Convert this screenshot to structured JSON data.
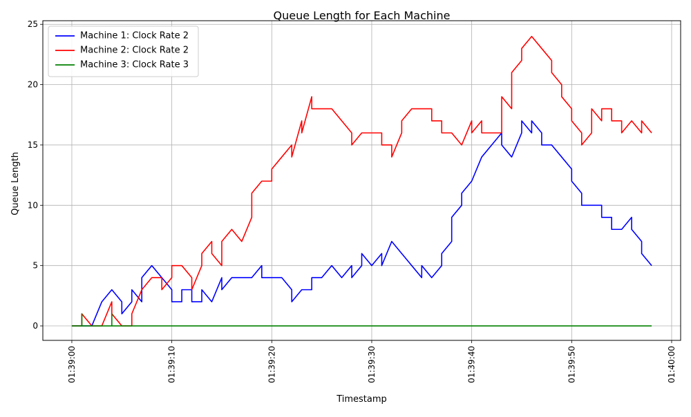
{
  "chart_data": {
    "type": "line",
    "title": "Queue Length for Each Machine",
    "xlabel": "Timestamp",
    "ylabel": "Queue Length",
    "x_ticks": [
      "01:39:00",
      "01:39:10",
      "01:39:20",
      "01:39:30",
      "01:39:40",
      "01:39:50",
      "01:40:00"
    ],
    "x_tick_seconds": [
      0,
      10,
      20,
      30,
      40,
      50,
      60
    ],
    "xlim": [
      -2.9,
      60.9
    ],
    "y_ticks": [
      0,
      5,
      10,
      15,
      20,
      25
    ],
    "ylim": [
      -1.2,
      25.3
    ],
    "grid": true,
    "legend_position": "top-left",
    "x_unit": "seconds after 01:39:00",
    "series": [
      {
        "name": "Machine 1: Clock Rate 2",
        "color": "#0000ff",
        "points": [
          [
            0,
            0
          ],
          [
            1,
            0
          ],
          [
            2,
            0
          ],
          [
            3,
            2
          ],
          [
            4,
            3
          ],
          [
            5,
            2
          ],
          [
            5,
            1
          ],
          [
            6,
            2
          ],
          [
            6,
            3
          ],
          [
            7,
            2
          ],
          [
            7,
            4
          ],
          [
            8,
            5
          ],
          [
            9,
            4
          ],
          [
            10,
            3
          ],
          [
            10,
            2
          ],
          [
            11,
            2
          ],
          [
            11,
            3
          ],
          [
            12,
            3
          ],
          [
            12,
            2
          ],
          [
            13,
            2
          ],
          [
            13,
            3
          ],
          [
            14,
            2
          ],
          [
            15,
            4
          ],
          [
            15,
            3
          ],
          [
            16,
            4
          ],
          [
            17,
            4
          ],
          [
            18,
            4
          ],
          [
            19,
            5
          ],
          [
            19,
            4
          ],
          [
            20,
            4
          ],
          [
            21,
            4
          ],
          [
            22,
            3
          ],
          [
            22,
            2
          ],
          [
            23,
            3
          ],
          [
            24,
            3
          ],
          [
            24,
            4
          ],
          [
            25,
            4
          ],
          [
            26,
            5
          ],
          [
            27,
            4
          ],
          [
            28,
            5
          ],
          [
            28,
            4
          ],
          [
            29,
            5
          ],
          [
            29,
            6
          ],
          [
            30,
            5
          ],
          [
            31,
            6
          ],
          [
            31,
            5
          ],
          [
            32,
            7
          ],
          [
            33,
            6
          ],
          [
            34,
            5
          ],
          [
            35,
            4
          ],
          [
            35,
            5
          ],
          [
            36,
            4
          ],
          [
            37,
            5
          ],
          [
            37,
            6
          ],
          [
            38,
            7
          ],
          [
            38,
            9
          ],
          [
            39,
            10
          ],
          [
            39,
            11
          ],
          [
            40,
            12
          ],
          [
            41,
            14
          ],
          [
            42,
            15
          ],
          [
            43,
            16
          ],
          [
            43,
            15
          ],
          [
            44,
            14
          ],
          [
            45,
            16
          ],
          [
            45,
            17
          ],
          [
            46,
            16
          ],
          [
            46,
            17
          ],
          [
            47,
            16
          ],
          [
            47,
            15
          ],
          [
            48,
            15
          ],
          [
            49,
            14
          ],
          [
            50,
            13
          ],
          [
            50,
            12
          ],
          [
            51,
            11
          ],
          [
            51,
            10
          ],
          [
            52,
            10
          ],
          [
            53,
            10
          ],
          [
            53,
            9
          ],
          [
            54,
            9
          ],
          [
            54,
            8
          ],
          [
            55,
            8
          ],
          [
            56,
            9
          ],
          [
            56,
            8
          ],
          [
            57,
            7
          ],
          [
            57,
            6
          ],
          [
            58,
            5
          ]
        ]
      },
      {
        "name": "Machine 2: Clock Rate 2",
        "color": "#ff0000",
        "points": [
          [
            0,
            0
          ],
          [
            1,
            0
          ],
          [
            1,
            1
          ],
          [
            2,
            0
          ],
          [
            3,
            0
          ],
          [
            4,
            2
          ],
          [
            4,
            1
          ],
          [
            5,
            0
          ],
          [
            6,
            0
          ],
          [
            6,
            1
          ],
          [
            7,
            3
          ],
          [
            8,
            4
          ],
          [
            9,
            4
          ],
          [
            9,
            3
          ],
          [
            10,
            4
          ],
          [
            10,
            5
          ],
          [
            11,
            5
          ],
          [
            12,
            4
          ],
          [
            12,
            3
          ],
          [
            13,
            5
          ],
          [
            13,
            6
          ],
          [
            14,
            7
          ],
          [
            14,
            6
          ],
          [
            15,
            5
          ],
          [
            15,
            7
          ],
          [
            16,
            8
          ],
          [
            17,
            7
          ],
          [
            18,
            9
          ],
          [
            18,
            11
          ],
          [
            19,
            12
          ],
          [
            20,
            12
          ],
          [
            20,
            13
          ],
          [
            21,
            14
          ],
          [
            22,
            15
          ],
          [
            22,
            14
          ],
          [
            23,
            17
          ],
          [
            23,
            16
          ],
          [
            24,
            19
          ],
          [
            24,
            18
          ],
          [
            25,
            18
          ],
          [
            26,
            18
          ],
          [
            27,
            17
          ],
          [
            28,
            16
          ],
          [
            28,
            15
          ],
          [
            29,
            16
          ],
          [
            30,
            16
          ],
          [
            31,
            16
          ],
          [
            31,
            15
          ],
          [
            32,
            15
          ],
          [
            32,
            14
          ],
          [
            33,
            16
          ],
          [
            33,
            17
          ],
          [
            34,
            18
          ],
          [
            35,
            18
          ],
          [
            36,
            18
          ],
          [
            36,
            17
          ],
          [
            37,
            17
          ],
          [
            37,
            16
          ],
          [
            38,
            16
          ],
          [
            39,
            15
          ],
          [
            40,
            17
          ],
          [
            40,
            16
          ],
          [
            41,
            17
          ],
          [
            41,
            16
          ],
          [
            42,
            16
          ],
          [
            43,
            16
          ],
          [
            43,
            19
          ],
          [
            44,
            18
          ],
          [
            44,
            21
          ],
          [
            45,
            22
          ],
          [
            45,
            23
          ],
          [
            46,
            24
          ],
          [
            47,
            23
          ],
          [
            48,
            22
          ],
          [
            48,
            21
          ],
          [
            49,
            20
          ],
          [
            49,
            19
          ],
          [
            50,
            18
          ],
          [
            50,
            17
          ],
          [
            51,
            16
          ],
          [
            51,
            15
          ],
          [
            52,
            16
          ],
          [
            52,
            18
          ],
          [
            53,
            17
          ],
          [
            53,
            18
          ],
          [
            54,
            18
          ],
          [
            54,
            17
          ],
          [
            55,
            17
          ],
          [
            55,
            16
          ],
          [
            56,
            17
          ],
          [
            57,
            16
          ],
          [
            57,
            17
          ],
          [
            58,
            16
          ]
        ]
      },
      {
        "name": "Machine 3: Clock Rate 3",
        "color": "#008000",
        "points": [
          [
            0,
            0
          ],
          [
            1,
            0
          ],
          [
            1,
            1
          ],
          [
            1,
            0
          ],
          [
            4,
            0
          ],
          [
            4,
            1
          ],
          [
            4,
            0
          ],
          [
            58,
            0
          ]
        ]
      }
    ]
  }
}
